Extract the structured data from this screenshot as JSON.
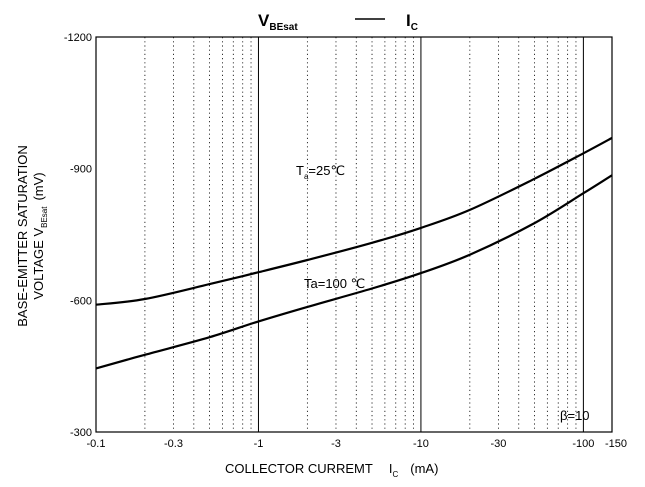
{
  "chart_data": {
    "type": "line",
    "title": {
      "main_sub": "BEsat",
      "main_prefix": "V",
      "dash": "——",
      "right_main": "I",
      "right_sub": "C"
    },
    "xlabel": {
      "text": "COLLECTOR CURREMT",
      "symbol": "I",
      "symbol_sub": "C",
      "unit": "(mA)"
    },
    "ylabel": {
      "line1": "BASE-EMITTER SATURATION",
      "line2_prefix": "VOLTAGE  V",
      "line2_sub": "BEsat",
      "line2_unit": "(mV)"
    },
    "x_scale": "log",
    "x_display_range": [
      -0.1,
      -150
    ],
    "y_range": [
      -300,
      -1200
    ],
    "x_ticks": [
      {
        "value": 0.1,
        "label": "-0.1"
      },
      {
        "value": 0.3,
        "label": "-0.3"
      },
      {
        "value": 1,
        "label": "-1"
      },
      {
        "value": 3,
        "label": "-3"
      },
      {
        "value": 10,
        "label": "-10"
      },
      {
        "value": 30,
        "label": "-30"
      },
      {
        "value": 100,
        "label": "-100"
      },
      {
        "value": 150,
        "label": "-150"
      }
    ],
    "y_ticks": [
      {
        "value": -1200,
        "label": "-1200"
      },
      {
        "value": -900,
        "label": "-900"
      },
      {
        "value": -600,
        "label": "-600"
      },
      {
        "value": -300,
        "label": "-300"
      }
    ],
    "grid": true,
    "series": [
      {
        "name": "Ta=25℃",
        "label_prefix": "T",
        "label_sub": "a",
        "label_suffix": "=25℃",
        "x": [
          0.1,
          0.2,
          0.5,
          1,
          2,
          5,
          10,
          20,
          50,
          100,
          150
        ],
        "y": [
          -590,
          -603,
          -637,
          -664,
          -692,
          -731,
          -765,
          -806,
          -877,
          -935,
          -970
        ]
      },
      {
        "name": "Ta=100 ℃",
        "label_prefix": "Ta=100 ℃",
        "label_sub": "",
        "label_suffix": "",
        "x": [
          0.1,
          0.2,
          0.5,
          1,
          2,
          5,
          10,
          20,
          50,
          100,
          150
        ],
        "y": [
          -445,
          -476,
          -516,
          -552,
          -585,
          -627,
          -662,
          -704,
          -776,
          -844,
          -885
        ]
      }
    ],
    "annotations": [
      {
        "text": "β=10"
      }
    ]
  }
}
